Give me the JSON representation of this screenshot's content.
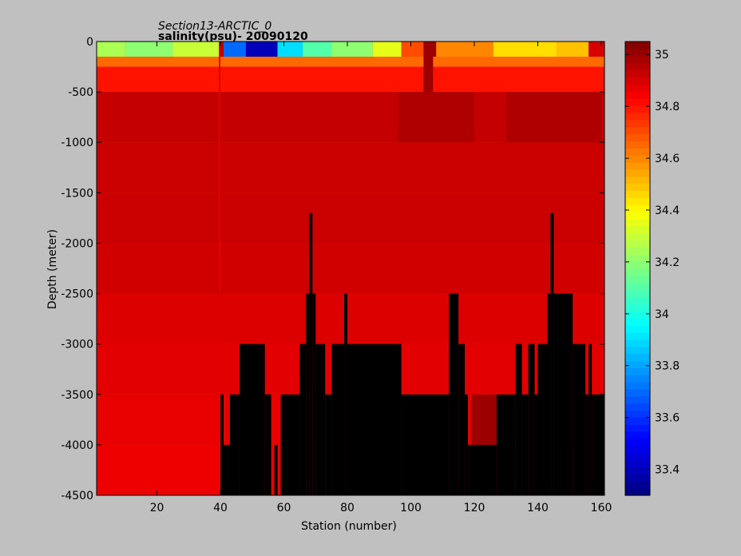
{
  "chart_data": {
    "type": "heatmap",
    "title": "Section13-ARCTIC_0",
    "subtitle": "salinity(psu)- 20090120",
    "xlabel": "Station (number)",
    "ylabel": "Depth (meter)",
    "xlim": [
      1,
      161
    ],
    "ylim": [
      -4500,
      0
    ],
    "xticks": [
      20,
      40,
      60,
      80,
      100,
      120,
      140,
      160
    ],
    "yticks": [
      0,
      -500,
      -1000,
      -1500,
      -2000,
      -2500,
      -3000,
      -3500,
      -4000,
      -4500
    ],
    "colorbar": {
      "clim": [
        33.3,
        35.05
      ],
      "ticks": [
        33.4,
        33.6,
        33.8,
        34,
        34.2,
        34.4,
        34.6,
        34.8,
        35
      ],
      "colormap": "jet"
    },
    "mask_color": "#000000",
    "depth_layers": [
      0,
      -500,
      -1000,
      -1500,
      -2000,
      -2500,
      -3000,
      -3500,
      -4000,
      -4500
    ],
    "seafloor": [
      {
        "x": [
          40,
          41
        ],
        "depth": -3500
      },
      {
        "x": [
          41,
          43
        ],
        "depth": -4000
      },
      {
        "x": [
          43,
          46
        ],
        "depth": -3500
      },
      {
        "x": [
          46,
          54
        ],
        "depth": -3000
      },
      {
        "x": [
          54,
          56
        ],
        "depth": -3500
      },
      {
        "x": [
          56,
          57
        ],
        "depth": -4500
      },
      {
        "x": [
          57,
          58
        ],
        "depth": -4000
      },
      {
        "x": [
          58,
          59
        ],
        "depth": -4500
      },
      {
        "x": [
          59,
          65
        ],
        "depth": -3500
      },
      {
        "x": [
          65,
          67
        ],
        "depth": -3000
      },
      {
        "x": [
          67,
          68
        ],
        "depth": -2500
      },
      {
        "x": [
          68,
          69
        ],
        "depth": -1700
      },
      {
        "x": [
          69,
          70
        ],
        "depth": -2500
      },
      {
        "x": [
          70,
          73
        ],
        "depth": -3000
      },
      {
        "x": [
          73,
          75
        ],
        "depth": -3500
      },
      {
        "x": [
          75,
          79
        ],
        "depth": -3000
      },
      {
        "x": [
          79,
          80
        ],
        "depth": -2500
      },
      {
        "x": [
          80,
          97
        ],
        "depth": -3000
      },
      {
        "x": [
          97,
          112
        ],
        "depth": -3500
      },
      {
        "x": [
          112,
          115
        ],
        "depth": -2500
      },
      {
        "x": [
          115,
          117
        ],
        "depth": -3000
      },
      {
        "x": [
          117,
          118
        ],
        "depth": -3500
      },
      {
        "x": [
          118,
          120
        ],
        "depth": -4000
      },
      {
        "x": [
          120,
          127
        ],
        "depth": -4000
      },
      {
        "x": [
          127,
          133
        ],
        "depth": -3500
      },
      {
        "x": [
          133,
          135
        ],
        "depth": -3000
      },
      {
        "x": [
          135,
          137
        ],
        "depth": -3500
      },
      {
        "x": [
          137,
          139
        ],
        "depth": -3000
      },
      {
        "x": [
          139,
          140
        ],
        "depth": -3500
      },
      {
        "x": [
          140,
          143
        ],
        "depth": -3000
      },
      {
        "x": [
          143,
          144
        ],
        "depth": -2500
      },
      {
        "x": [
          144,
          145
        ],
        "depth": -1700
      },
      {
        "x": [
          145,
          151
        ],
        "depth": -2500
      },
      {
        "x": [
          151,
          155
        ],
        "depth": -3000
      },
      {
        "x": [
          155,
          156
        ],
        "depth": -3500
      },
      {
        "x": [
          156,
          157
        ],
        "depth": -3000
      },
      {
        "x": [
          157,
          161
        ],
        "depth": -3500
      }
    ],
    "surface_salinity": [
      {
        "x": [
          1,
          10
        ],
        "value": 34.25
      },
      {
        "x": [
          10,
          25
        ],
        "value": 34.2
      },
      {
        "x": [
          25,
          40
        ],
        "value": 34.3
      },
      {
        "x": [
          40,
          41
        ],
        "value": 34.95
      },
      {
        "x": [
          41,
          48
        ],
        "value": 33.7
      },
      {
        "x": [
          48,
          58
        ],
        "value": 33.4
      },
      {
        "x": [
          58,
          66
        ],
        "value": 33.9
      },
      {
        "x": [
          66,
          75
        ],
        "value": 34.1
      },
      {
        "x": [
          75,
          88
        ],
        "value": 34.2
      },
      {
        "x": [
          88,
          97
        ],
        "value": 34.35
      },
      {
        "x": [
          97,
          104
        ],
        "value": 34.7
      },
      {
        "x": [
          104,
          108
        ],
        "value": 35.0
      },
      {
        "x": [
          108,
          126
        ],
        "value": 34.6
      },
      {
        "x": [
          126,
          146
        ],
        "value": 34.45
      },
      {
        "x": [
          146,
          156
        ],
        "value": 34.5
      },
      {
        "x": [
          156,
          161
        ],
        "value": 34.9
      }
    ],
    "layer_salinity": [
      {
        "depth": [
          0,
          -250
        ],
        "value": 34.65
      },
      {
        "depth": [
          -250,
          -500
        ],
        "value": 34.8
      },
      {
        "depth": [
          -500,
          -1000
        ],
        "value": 34.93
      },
      {
        "depth": [
          -1000,
          -1500
        ],
        "value": 34.92
      },
      {
        "depth": [
          -1500,
          -2000
        ],
        "value": 34.92
      },
      {
        "depth": [
          -2000,
          -2500
        ],
        "value": 34.91
      },
      {
        "depth": [
          -2500,
          -3000
        ],
        "value": 34.89
      },
      {
        "depth": [
          -3000,
          -3500
        ],
        "value": 34.88
      },
      {
        "depth": [
          -3500,
          -4000
        ],
        "value": 34.87
      },
      {
        "depth": [
          -4000,
          -4500
        ],
        "value": 34.86
      }
    ],
    "column_anomalies": [
      {
        "x": [
          39.5,
          40
        ],
        "depth": [
          0,
          -2500
        ],
        "value": 34.88
      },
      {
        "x": [
          104,
          107
        ],
        "depth": [
          0,
          -500
        ],
        "value": 35.0
      },
      {
        "x": [
          119,
          127
        ],
        "depth": [
          -3500,
          -4000
        ],
        "value": 35.0
      },
      {
        "x": [
          96,
          120
        ],
        "depth": [
          -500,
          -1000
        ],
        "value": 34.97
      },
      {
        "x": [
          130,
          160
        ],
        "depth": [
          -500,
          -1000
        ],
        "value": 34.97
      }
    ]
  }
}
